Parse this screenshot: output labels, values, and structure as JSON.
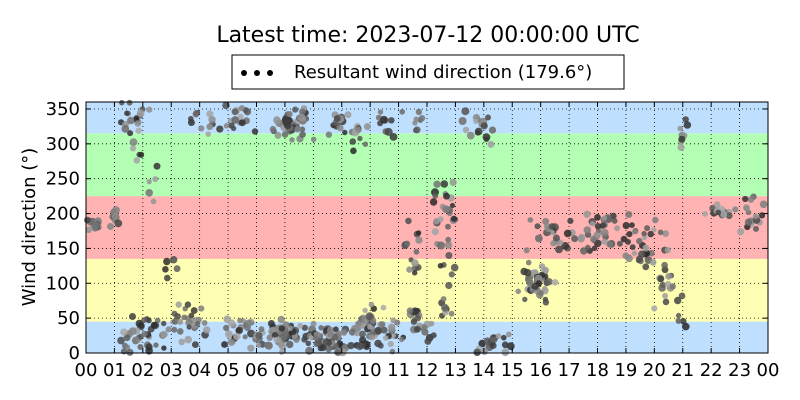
{
  "chart_data": {
    "type": "scatter",
    "title": "Latest time: 2023-07-12 00:00:00 UTC",
    "ylabel": "Wind direction (°)",
    "xlabel": "",
    "xlim": [
      0,
      24
    ],
    "ylim": [
      0,
      360
    ],
    "x_ticks": [
      "00",
      "01",
      "02",
      "03",
      "04",
      "05",
      "06",
      "07",
      "08",
      "09",
      "10",
      "11",
      "12",
      "13",
      "14",
      "15",
      "16",
      "17",
      "18",
      "19",
      "20",
      "21",
      "22",
      "23",
      "00"
    ],
    "y_ticks": [
      0,
      50,
      100,
      150,
      200,
      250,
      300,
      350
    ],
    "grid": true,
    "legend": {
      "placement": "top-center",
      "entries": [
        "Resultant wind direction (179.6°)"
      ]
    },
    "bands": [
      {
        "from": 0,
        "to": 45,
        "color": "#bfdfff"
      },
      {
        "from": 45,
        "to": 135,
        "color": "#ffffb3"
      },
      {
        "from": 135,
        "to": 225,
        "color": "#ffb3b3"
      },
      {
        "from": 225,
        "to": 315,
        "color": "#b3ffb3"
      },
      {
        "from": 315,
        "to": 360,
        "color": "#bfdfff"
      }
    ],
    "clusters": [
      {
        "x": 0.3,
        "y": 185,
        "n": 18,
        "dx": 0.25,
        "dy": 10
      },
      {
        "x": 1.0,
        "y": 190,
        "n": 8,
        "dx": 0.2,
        "dy": 15
      },
      {
        "x": 1.6,
        "y": 340,
        "n": 18,
        "dx": 0.55,
        "dy": 20
      },
      {
        "x": 1.8,
        "y": 290,
        "n": 5,
        "dx": 0.2,
        "dy": 20
      },
      {
        "x": 2.4,
        "y": 250,
        "n": 5,
        "dx": 0.3,
        "dy": 40
      },
      {
        "x": 2.0,
        "y": 25,
        "n": 40,
        "dx": 0.9,
        "dy": 22
      },
      {
        "x": 3.7,
        "y": 40,
        "n": 30,
        "dx": 0.9,
        "dy": 25
      },
      {
        "x": 3.2,
        "y": 120,
        "n": 5,
        "dx": 0.4,
        "dy": 15
      },
      {
        "x": 4.0,
        "y": 330,
        "n": 12,
        "dx": 0.7,
        "dy": 20
      },
      {
        "x": 5.4,
        "y": 335,
        "n": 18,
        "dx": 0.8,
        "dy": 18
      },
      {
        "x": 5.5,
        "y": 30,
        "n": 30,
        "dx": 0.8,
        "dy": 20
      },
      {
        "x": 6.9,
        "y": 25,
        "n": 60,
        "dx": 0.9,
        "dy": 18
      },
      {
        "x": 7.2,
        "y": 330,
        "n": 45,
        "dx": 0.6,
        "dy": 22
      },
      {
        "x": 8.5,
        "y": 20,
        "n": 60,
        "dx": 0.9,
        "dy": 15
      },
      {
        "x": 8.8,
        "y": 330,
        "n": 14,
        "dx": 0.7,
        "dy": 20
      },
      {
        "x": 10.2,
        "y": 35,
        "n": 55,
        "dx": 0.9,
        "dy": 22
      },
      {
        "x": 9.6,
        "y": 320,
        "n": 10,
        "dx": 0.3,
        "dy": 25
      },
      {
        "x": 10.5,
        "y": 330,
        "n": 10,
        "dx": 0.6,
        "dy": 18
      },
      {
        "x": 11.5,
        "y": 135,
        "n": 14,
        "dx": 0.3,
        "dy": 40
      },
      {
        "x": 11.8,
        "y": 40,
        "n": 22,
        "dx": 0.4,
        "dy": 22
      },
      {
        "x": 11.6,
        "y": 330,
        "n": 8,
        "dx": 0.7,
        "dy": 15
      },
      {
        "x": 12.7,
        "y": 195,
        "n": 28,
        "dx": 0.5,
        "dy": 50
      },
      {
        "x": 12.6,
        "y": 80,
        "n": 12,
        "dx": 0.4,
        "dy": 40
      },
      {
        "x": 13.8,
        "y": 330,
        "n": 20,
        "dx": 0.6,
        "dy": 20
      },
      {
        "x": 14.3,
        "y": 20,
        "n": 18,
        "dx": 0.6,
        "dy": 20
      },
      {
        "x": 15.9,
        "y": 100,
        "n": 45,
        "dx": 0.5,
        "dy": 22
      },
      {
        "x": 16.5,
        "y": 170,
        "n": 25,
        "dx": 0.9,
        "dy": 25
      },
      {
        "x": 18.3,
        "y": 175,
        "n": 40,
        "dx": 1.0,
        "dy": 20
      },
      {
        "x": 19.8,
        "y": 155,
        "n": 30,
        "dx": 0.8,
        "dy": 30
      },
      {
        "x": 20.4,
        "y": 100,
        "n": 12,
        "dx": 0.5,
        "dy": 25
      },
      {
        "x": 20.9,
        "y": 60,
        "n": 8,
        "dx": 0.2,
        "dy": 35
      },
      {
        "x": 21.0,
        "y": 310,
        "n": 8,
        "dx": 0.2,
        "dy": 30
      },
      {
        "x": 22.3,
        "y": 200,
        "n": 18,
        "dx": 0.6,
        "dy": 8
      },
      {
        "x": 23.4,
        "y": 195,
        "n": 18,
        "dx": 0.5,
        "dy": 25
      }
    ]
  }
}
